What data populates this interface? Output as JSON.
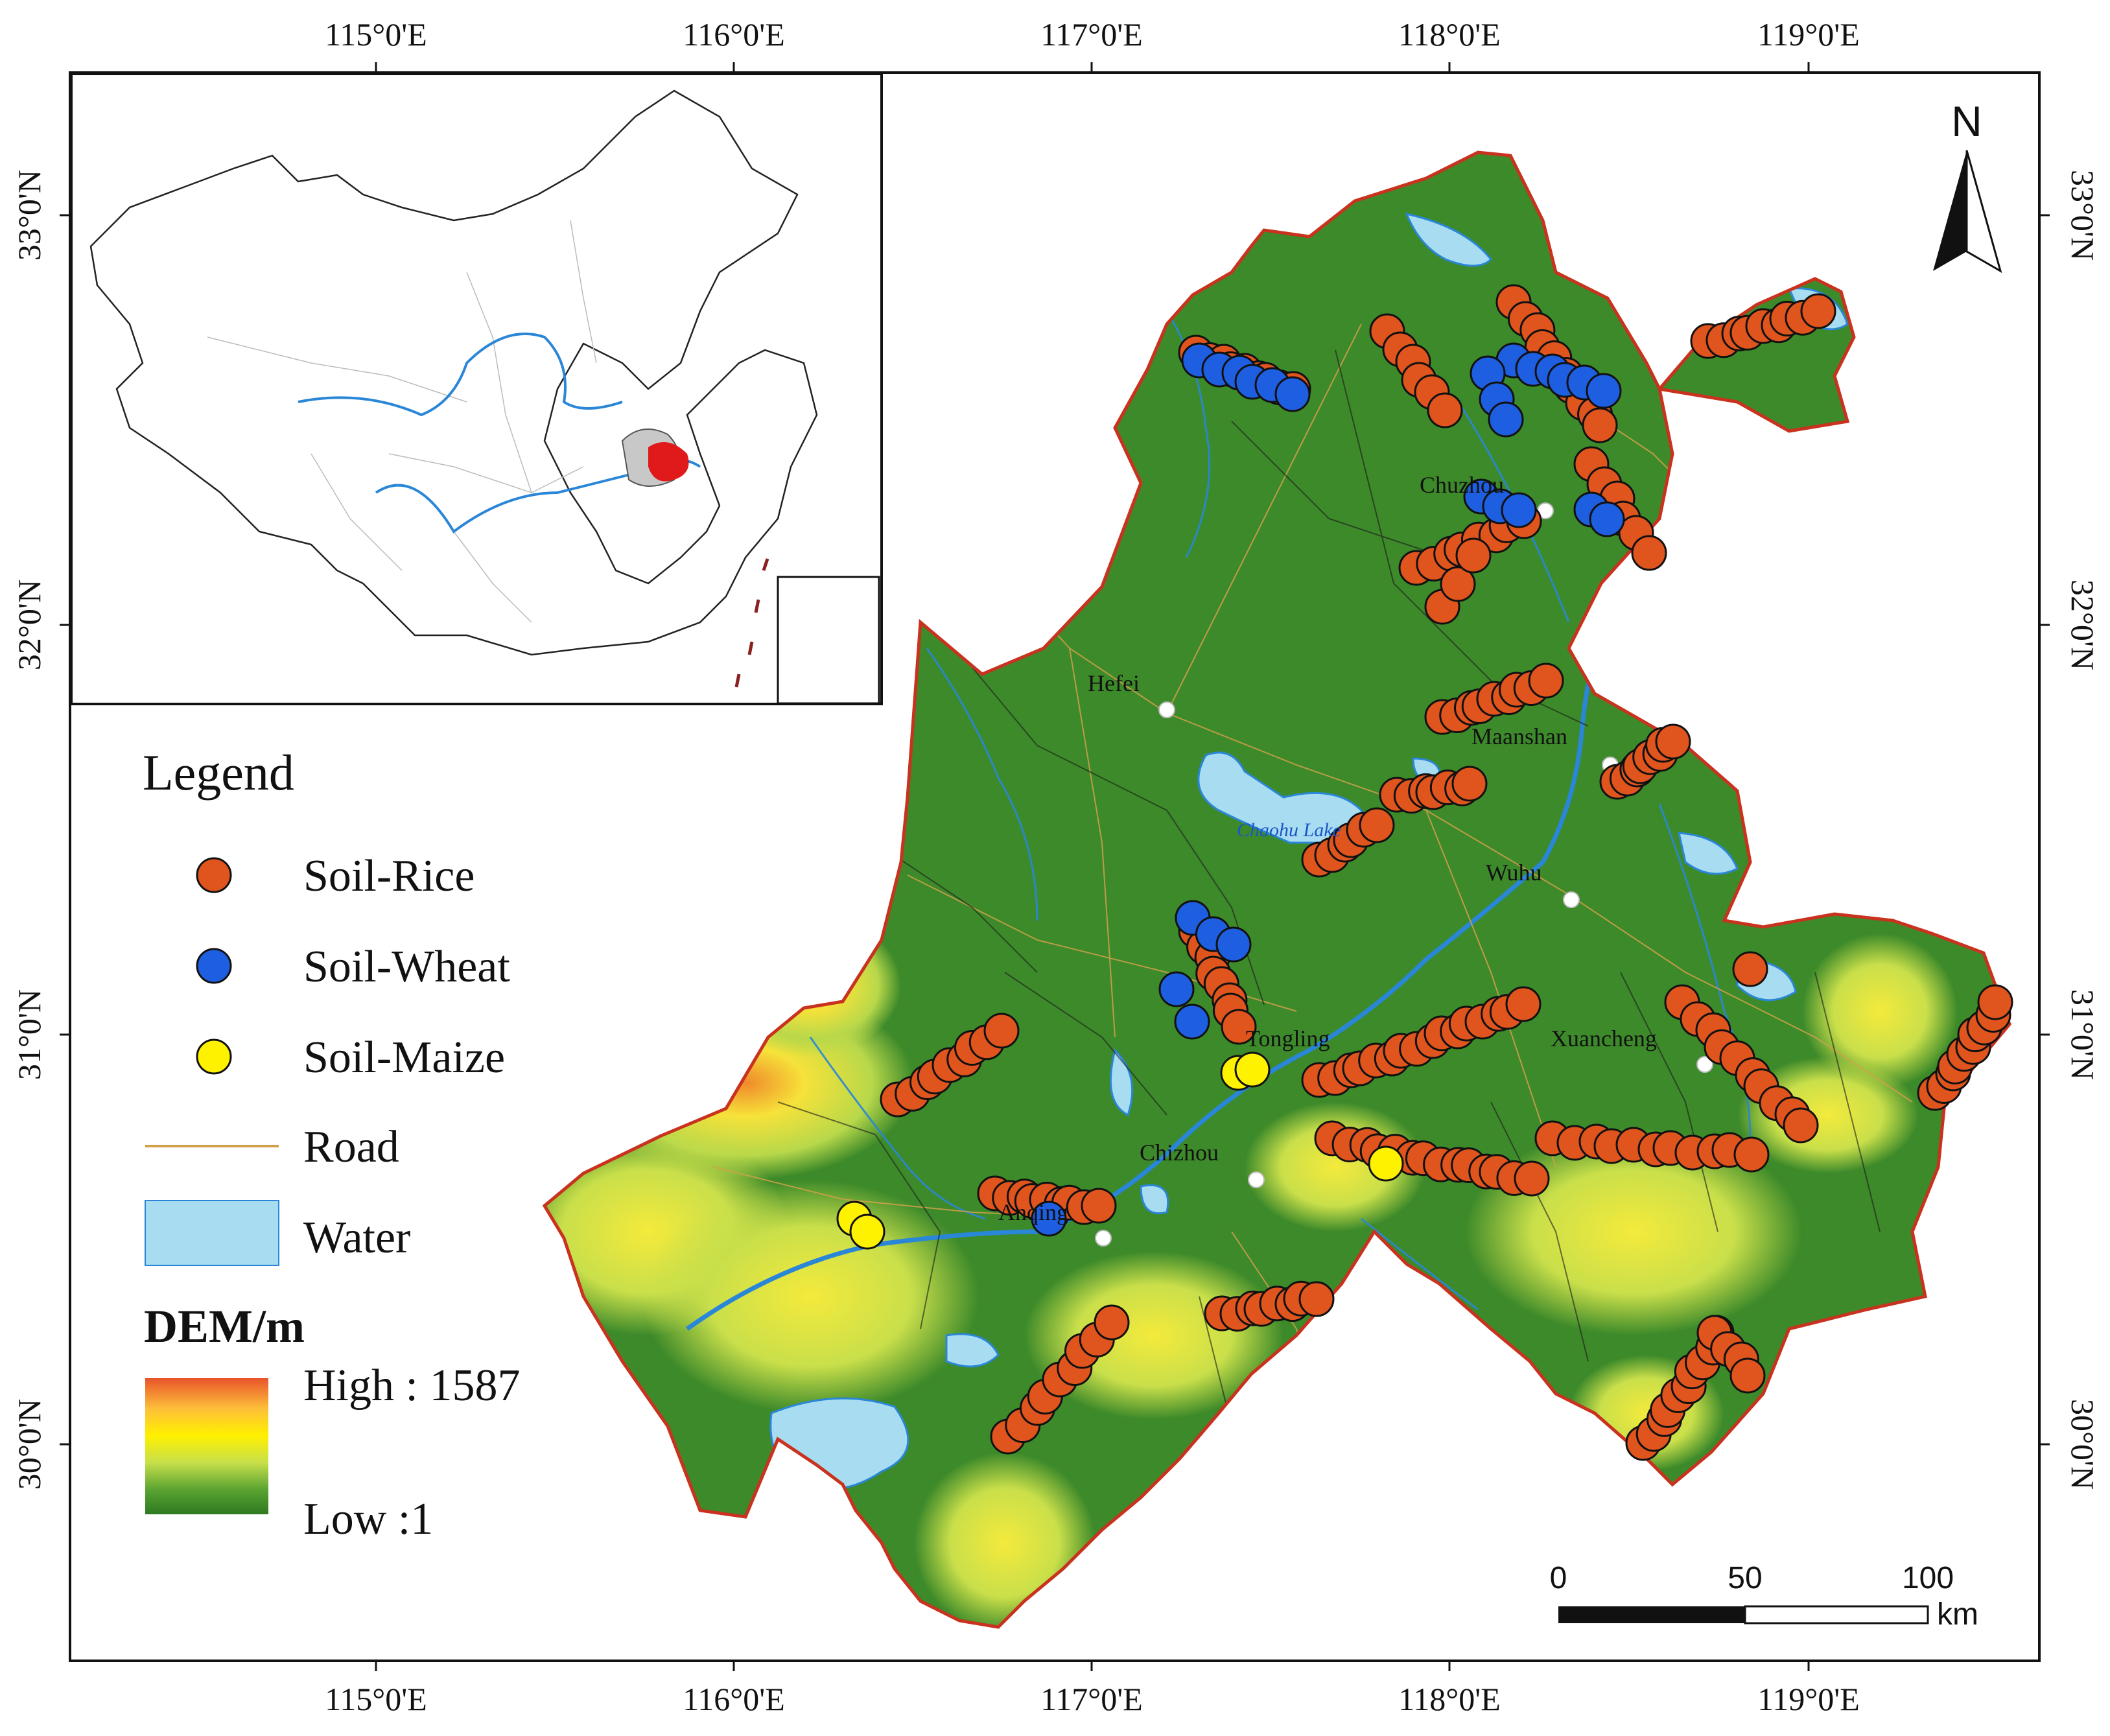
{
  "axes": {
    "lon_labels": [
      "115°0'E",
      "116°0'E",
      "117°0'E",
      "118°0'E",
      "119°0'E"
    ],
    "lat_labels": [
      "33°0'N",
      "32°0'N",
      "31°0'N",
      "30°0'N"
    ]
  },
  "cities": [
    "Chuzhou",
    "Hefei",
    "Maanshan",
    "Wuhu",
    "Tongling",
    "Xuancheng",
    "Chizhou",
    "Anqing"
  ],
  "lake_label": "Chaohu Lake",
  "north_label": "N",
  "legend": {
    "title": "Legend",
    "items": [
      {
        "label": "Soil-Rice",
        "color": "#e0541e"
      },
      {
        "label": "Soil-Wheat",
        "color": "#1e5ee0"
      },
      {
        "label": "Soil-Maize",
        "color": "#fff200"
      },
      {
        "label": "Road",
        "color": "#d2a04b"
      },
      {
        "label": "Water",
        "color": "#a8dcf0"
      }
    ],
    "dem_title": "DEM/m",
    "dem_high": "High : 1587",
    "dem_low": "Low :1",
    "dem_colors": [
      "#e8542a",
      "#fdbe3a",
      "#fff000",
      "#c7e04a",
      "#5aa332",
      "#2e7a20"
    ]
  },
  "scale_bar": {
    "ticks": [
      "0",
      "50",
      "100"
    ],
    "unit": "km"
  },
  "colors": {
    "terrain": "#3d8a2a",
    "border": "#c8321e",
    "river": "#2a86d6"
  }
}
